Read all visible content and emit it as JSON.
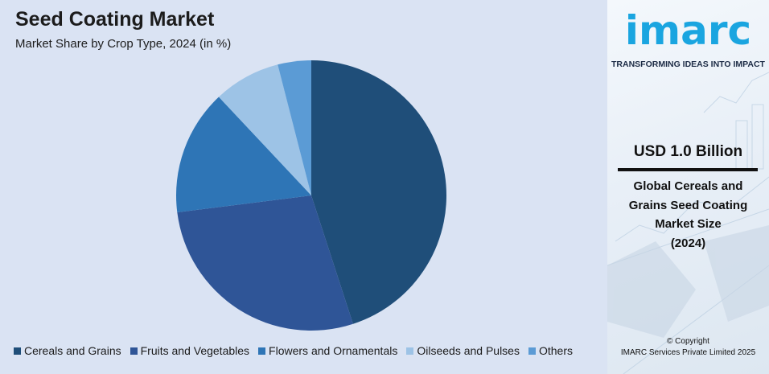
{
  "title": "Seed Coating Market",
  "subtitle": "Market Share by Crop Type, 2024 (in %)",
  "chart_data": {
    "type": "pie",
    "title": "Seed Coating Market",
    "subtitle": "Market Share by Crop Type, 2024 (in %)",
    "categories": [
      "Cereals and Grains",
      "Fruits and Vegetables",
      "Flowers and Ornamentals",
      "Oilseeds and Pulses",
      "Others"
    ],
    "values": [
      45,
      28,
      15,
      8,
      4
    ],
    "colors": [
      "#1f4e79",
      "#2f5597",
      "#2e75b6",
      "#9dc3e6",
      "#5b9bd5"
    ],
    "legend_position": "bottom"
  },
  "side": {
    "logo": "imarc",
    "tagline": "TRANSFORMING IDEAS INTO IMPACT",
    "stat_value": "USD 1.0 Billion",
    "stat_desc_lines": [
      "Global Cereals and",
      "Grains Seed Coating",
      "Market Size",
      "(2024)"
    ],
    "copyright_lines": [
      "© Copyright",
      "IMARC Services Private Limited 2025"
    ]
  }
}
